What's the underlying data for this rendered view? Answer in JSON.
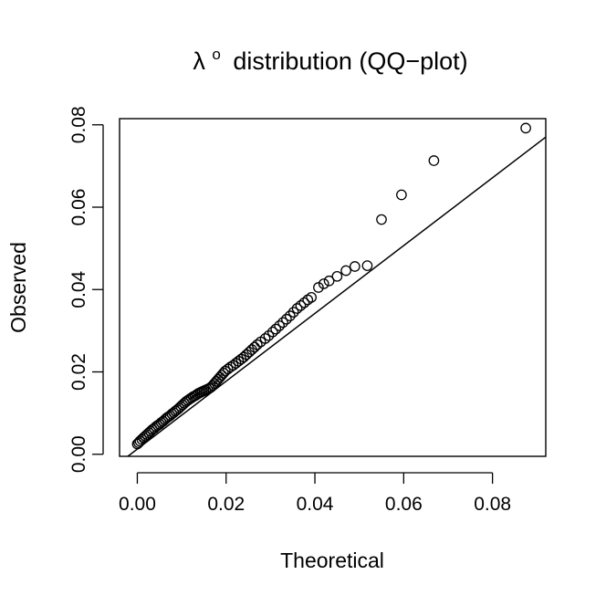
{
  "chart_data": {
    "type": "scatter",
    "title": {
      "symbol": "λ",
      "superscript": "o",
      "rest": "distribution (QQ−plot)"
    },
    "xlabel": "Theoretical",
    "ylabel": "Observed",
    "xlim": [
      -0.004,
      0.092
    ],
    "ylim": [
      -0.0005,
      0.0815
    ],
    "x_ticks": [
      0.0,
      0.02,
      0.04,
      0.06,
      0.08
    ],
    "y_ticks": [
      0.0,
      0.02,
      0.04,
      0.06,
      0.08
    ],
    "x_tick_labels": [
      "0.00",
      "0.02",
      "0.04",
      "0.06",
      "0.08"
    ],
    "y_tick_labels": [
      "0.00",
      "0.02",
      "0.04",
      "0.06",
      "0.08"
    ],
    "reference_line": {
      "intercept": 0.00126,
      "slope": 0.8236
    },
    "marker": "open-circle",
    "grid": false,
    "legend": "none",
    "points": [
      [
        0.0,
        0.0025
      ],
      [
        0.0003,
        0.0028
      ],
      [
        0.0006,
        0.0032
      ],
      [
        0.001,
        0.0036
      ],
      [
        0.0014,
        0.004
      ],
      [
        0.0018,
        0.0044
      ],
      [
        0.0022,
        0.0048
      ],
      [
        0.0026,
        0.0052
      ],
      [
        0.003,
        0.0056
      ],
      [
        0.0034,
        0.006
      ],
      [
        0.0038,
        0.0063
      ],
      [
        0.0042,
        0.0067
      ],
      [
        0.0046,
        0.007
      ],
      [
        0.005,
        0.0073
      ],
      [
        0.0054,
        0.0077
      ],
      [
        0.0058,
        0.008
      ],
      [
        0.0062,
        0.0084
      ],
      [
        0.0066,
        0.0088
      ],
      [
        0.007,
        0.0091
      ],
      [
        0.0074,
        0.0094
      ],
      [
        0.0078,
        0.0098
      ],
      [
        0.0082,
        0.0101
      ],
      [
        0.0086,
        0.0105
      ],
      [
        0.009,
        0.0108
      ],
      [
        0.0094,
        0.0112
      ],
      [
        0.0098,
        0.0116
      ],
      [
        0.0102,
        0.012
      ],
      [
        0.0106,
        0.0124
      ],
      [
        0.011,
        0.0128
      ],
      [
        0.0114,
        0.0131
      ],
      [
        0.0118,
        0.0134
      ],
      [
        0.0122,
        0.0137
      ],
      [
        0.0126,
        0.014
      ],
      [
        0.013,
        0.0142
      ],
      [
        0.0134,
        0.0145
      ],
      [
        0.0138,
        0.0148
      ],
      [
        0.0142,
        0.015
      ],
      [
        0.0146,
        0.0152
      ],
      [
        0.015,
        0.0154
      ],
      [
        0.0154,
        0.0156
      ],
      [
        0.0158,
        0.0158
      ],
      [
        0.0162,
        0.016
      ],
      [
        0.0166,
        0.0163
      ],
      [
        0.017,
        0.0167
      ],
      [
        0.0174,
        0.0172
      ],
      [
        0.0178,
        0.0177
      ],
      [
        0.0182,
        0.0182
      ],
      [
        0.0186,
        0.0187
      ],
      [
        0.019,
        0.0192
      ],
      [
        0.0194,
        0.0197
      ],
      [
        0.0198,
        0.0202
      ],
      [
        0.0204,
        0.0207
      ],
      [
        0.021,
        0.0212
      ],
      [
        0.0216,
        0.0216
      ],
      [
        0.0222,
        0.0221
      ],
      [
        0.0228,
        0.0226
      ],
      [
        0.0234,
        0.0231
      ],
      [
        0.024,
        0.0236
      ],
      [
        0.0246,
        0.0242
      ],
      [
        0.0252,
        0.0248
      ],
      [
        0.0258,
        0.0254
      ],
      [
        0.0264,
        0.026
      ],
      [
        0.027,
        0.0266
      ],
      [
        0.0278,
        0.0273
      ],
      [
        0.0288,
        0.0281
      ],
      [
        0.0296,
        0.0288
      ],
      [
        0.0305,
        0.0297
      ],
      [
        0.0312,
        0.0304
      ],
      [
        0.032,
        0.0312
      ],
      [
        0.0328,
        0.032
      ],
      [
        0.0336,
        0.0328
      ],
      [
        0.0344,
        0.0336
      ],
      [
        0.0352,
        0.0345
      ],
      [
        0.036,
        0.0354
      ],
      [
        0.0368,
        0.0361
      ],
      [
        0.0376,
        0.0368
      ],
      [
        0.0384,
        0.0375
      ],
      [
        0.0392,
        0.0381
      ],
      [
        0.0408,
        0.0405
      ],
      [
        0.042,
        0.0414
      ],
      [
        0.0432,
        0.0421
      ],
      [
        0.045,
        0.0432
      ],
      [
        0.047,
        0.0446
      ],
      [
        0.049,
        0.0456
      ],
      [
        0.0518,
        0.0458
      ],
      [
        0.055,
        0.057
      ],
      [
        0.0595,
        0.063
      ],
      [
        0.0668,
        0.0713
      ],
      [
        0.0875,
        0.0792
      ]
    ]
  }
}
